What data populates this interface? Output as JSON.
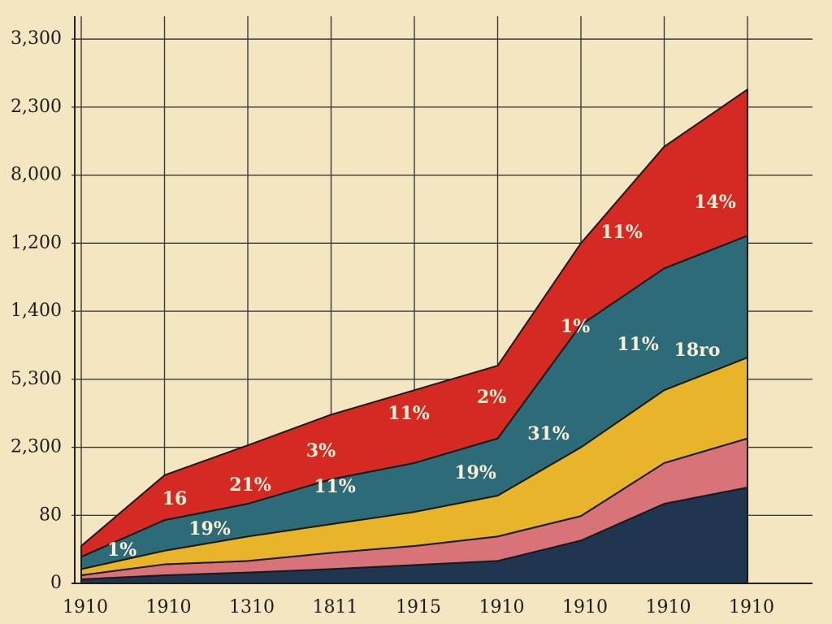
{
  "chart_data": {
    "type": "stacked_area",
    "categories": [
      "1910",
      "1910",
      "1310",
      "1811",
      "1915",
      "1910",
      "1910",
      "1910",
      "1910"
    ],
    "ylim": [
      0,
      8.3
    ],
    "yticks": [
      {
        "value": 0,
        "label": "0"
      },
      {
        "value": 1,
        "label": "80"
      },
      {
        "value": 2,
        "label": "2,300"
      },
      {
        "value": 3,
        "label": "5,300"
      },
      {
        "value": 4,
        "label": "1,400"
      },
      {
        "value": 5,
        "label": "1,200"
      },
      {
        "value": 6,
        "label": "8,000"
      },
      {
        "value": 7,
        "label": "2,300"
      },
      {
        "value": 8,
        "label": "3,300"
      }
    ],
    "grid": true,
    "series": [
      {
        "color": "#1f3550",
        "values": [
          0.06,
          0.12,
          0.16,
          0.21,
          0.27,
          0.33,
          0.63,
          1.17,
          1.41
        ]
      },
      {
        "color": "#d9737a",
        "values": [
          0.06,
          0.16,
          0.17,
          0.24,
          0.28,
          0.36,
          0.36,
          0.6,
          0.72
        ]
      },
      {
        "color": "#e8b52a",
        "values": [
          0.09,
          0.2,
          0.36,
          0.42,
          0.5,
          0.6,
          1.01,
          1.07,
          1.19
        ]
      },
      {
        "color": "#2d6b78",
        "values": [
          0.18,
          0.45,
          0.48,
          0.66,
          0.72,
          0.84,
          1.8,
          1.79,
          1.79
        ]
      },
      {
        "color": "#d42a23",
        "values": [
          0.16,
          0.66,
          0.86,
          0.95,
          1.07,
          1.07,
          1.2,
          1.79,
          2.15
        ]
      }
    ],
    "annotations": [
      {
        "text": "14%"
      },
      {
        "text": "11%"
      },
      {
        "text": "1%"
      },
      {
        "text": "2%"
      },
      {
        "text": "11%"
      },
      {
        "text": "3%"
      },
      {
        "text": "16"
      },
      {
        "text": "11%"
      },
      {
        "text": "18ro"
      },
      {
        "text": "31%"
      },
      {
        "text": "11%"
      },
      {
        "text": "21%"
      },
      {
        "text": "1%"
      },
      {
        "text": "19%"
      },
      {
        "text": "19%"
      }
    ]
  }
}
